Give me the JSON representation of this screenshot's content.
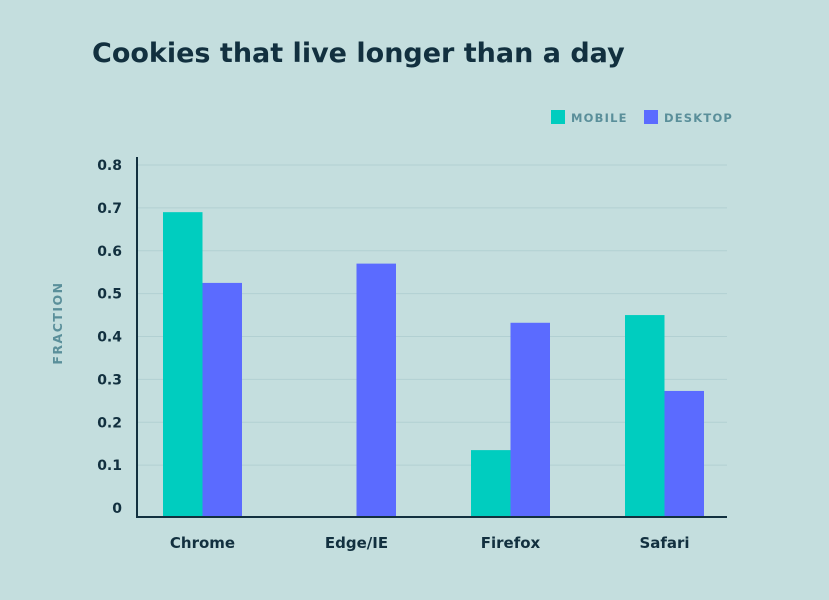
{
  "chart_data": {
    "type": "bar",
    "title": "Cookies that live longer than a day",
    "xlabel": "",
    "ylabel": "FRACTION",
    "categories": [
      "Chrome",
      "Edge/IE",
      "Firefox",
      "Safari"
    ],
    "series": [
      {
        "name": "MOBILE",
        "color": "#00cdbf",
        "values": [
          0.69,
          null,
          0.135,
          0.45
        ]
      },
      {
        "name": "DESKTOP",
        "color": "#5b6bff",
        "values": [
          0.525,
          0.57,
          0.432,
          0.273
        ]
      }
    ],
    "ylim": [
      0,
      0.8
    ],
    "yticks": [
      0,
      0.1,
      0.2,
      0.3,
      0.4,
      0.5,
      0.6,
      0.7,
      0.8
    ],
    "ytick_labels": [
      "0",
      "0.1",
      "0.2",
      "0.3",
      "0.4",
      "0.5",
      "0.6",
      "0.7",
      "0.8"
    ],
    "legend_position": "top-right",
    "grid": true
  }
}
